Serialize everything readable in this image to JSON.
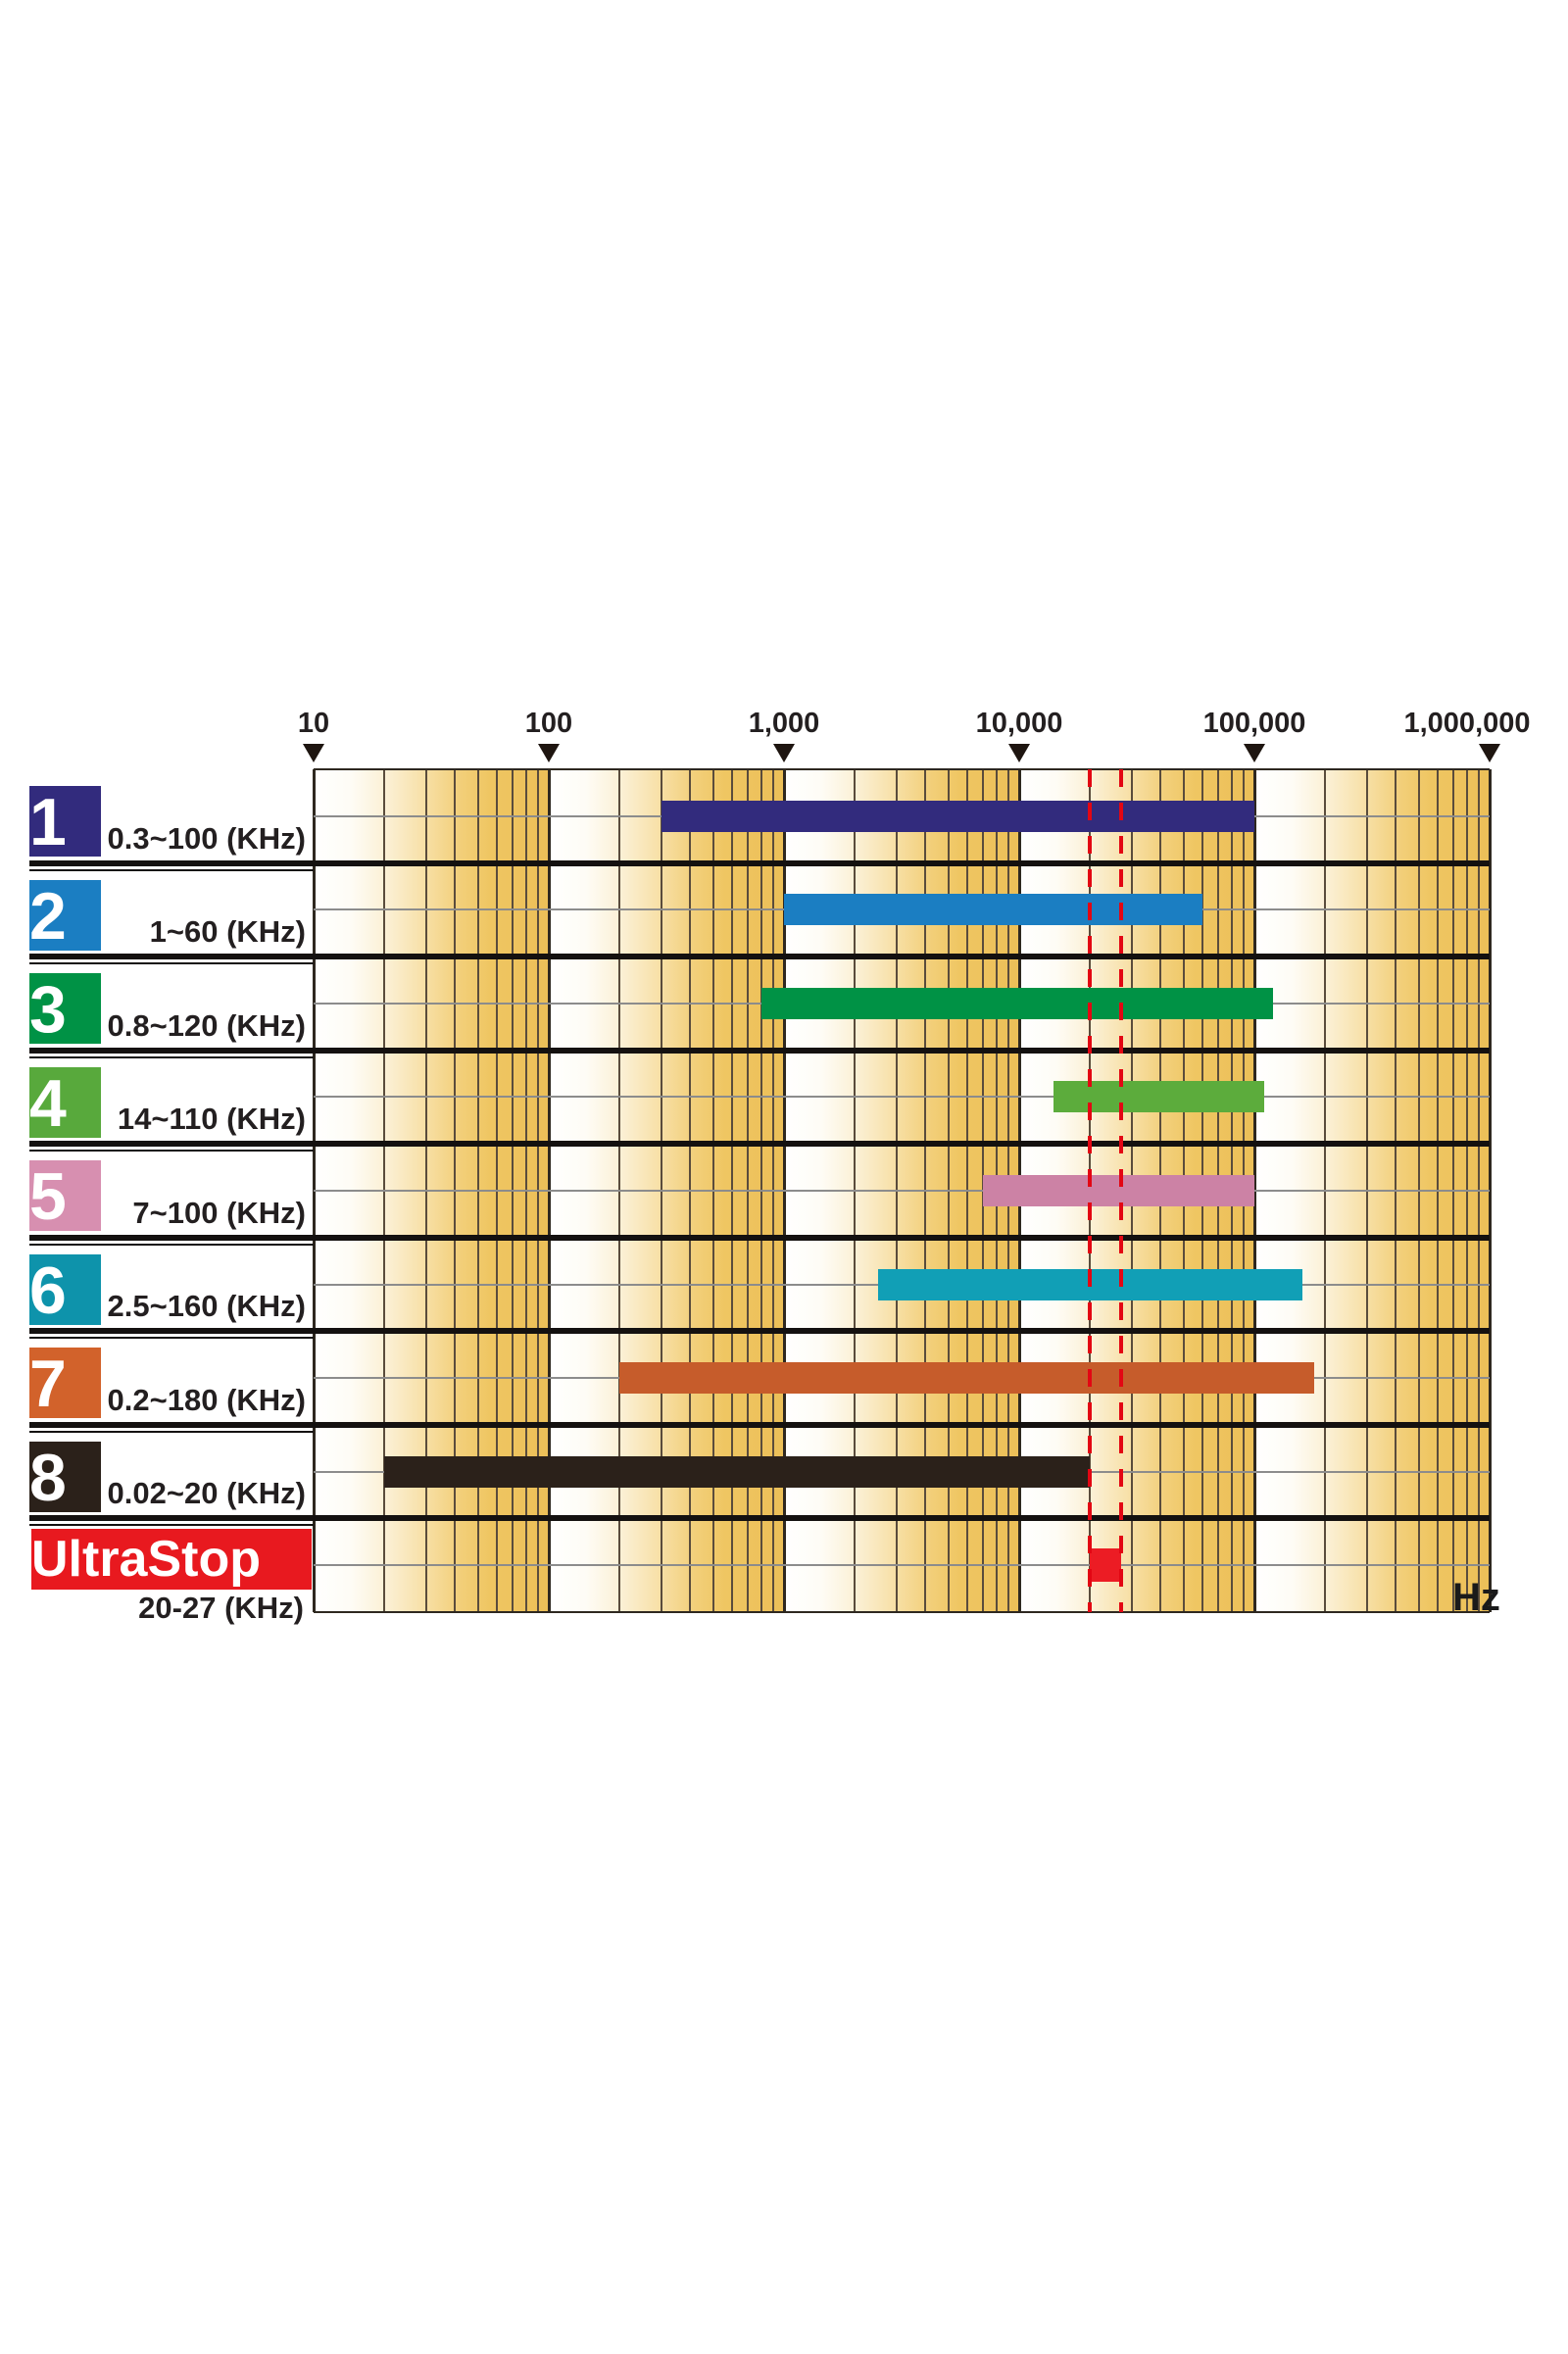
{
  "chart_data": {
    "type": "bar",
    "variant": "horizontal-log-range",
    "x_axis": {
      "unit": "Hz",
      "scale": "log",
      "min": 10,
      "max": 1000000,
      "ticks": [
        {
          "label": "10",
          "value": 10
        },
        {
          "label": "100",
          "value": 100
        },
        {
          "label": "1,000",
          "value": 1000
        },
        {
          "label": "10,000",
          "value": 10000
        },
        {
          "label": "100,000",
          "value": 100000
        },
        {
          "label": "1,000,000",
          "value": 1000000
        }
      ],
      "minor_gridlines": "multiples 2-9 of each decade"
    },
    "rows": [
      {
        "number": "1",
        "range_label": "0.3~100 (KHz)",
        "range_khz": [
          0.3,
          100
        ],
        "range_hz": [
          300,
          100000
        ],
        "bar_color": "#322b7d",
        "swatch_color": "#322b7d"
      },
      {
        "number": "2",
        "range_label": "1~60 (KHz)",
        "range_khz": [
          1,
          60
        ],
        "range_hz": [
          1000,
          60000
        ],
        "bar_color": "#1b7ec2",
        "swatch_color": "#1b7ec2"
      },
      {
        "number": "3",
        "range_label": "0.8~120 (KHz)",
        "range_khz": [
          0.8,
          120
        ],
        "range_hz": [
          800,
          120000
        ],
        "bar_color": "#009245",
        "swatch_color": "#009245"
      },
      {
        "number": "4",
        "range_label": "14~110 (KHz)",
        "range_khz": [
          14,
          110
        ],
        "range_hz": [
          14000,
          110000
        ],
        "bar_color": "#5cac3c",
        "swatch_color": "#58a93c"
      },
      {
        "number": "5",
        "range_label": "7~100 (KHz)",
        "range_khz": [
          7,
          100
        ],
        "range_hz": [
          7000,
          100000
        ],
        "bar_color": "#cc82a5",
        "swatch_color": "#d78fb0"
      },
      {
        "number": "6",
        "range_label": "2.5~160 (KHz)",
        "range_khz": [
          2.5,
          160
        ],
        "range_hz": [
          2500,
          160000
        ],
        "bar_color": "#119fb6",
        "swatch_color": "#0e93ab"
      },
      {
        "number": "7",
        "range_label": "0.2~180 (KHz)",
        "range_khz": [
          0.2,
          180
        ],
        "range_hz": [
          200,
          180000
        ],
        "bar_color": "#c65c2b",
        "swatch_color": "#d2622b"
      },
      {
        "number": "8",
        "range_label": "0.02~20 (KHz)",
        "range_khz": [
          0.02,
          20
        ],
        "range_hz": [
          20,
          20000
        ],
        "bar_color": "#2b211a",
        "swatch_color": "#2b211a"
      }
    ],
    "ultrastop": {
      "name": "UltraStop",
      "range_label": "20-27 (KHz)",
      "range_khz": [
        20,
        27
      ],
      "range_hz": [
        20000,
        27000
      ],
      "bar_color": "#ec1c24",
      "box_color": "#e8191f",
      "text_color": "#ffffff"
    },
    "reference_lines": {
      "values_hz": [
        20000,
        27000
      ],
      "style": "dashed",
      "color": "#e30613"
    },
    "colors": {
      "grid_stripe_orange": "#ecbf58",
      "gridline_minor": "#5a4c3c",
      "gridline_major": "#2e2820",
      "separator": "#141110",
      "midline": "#8c8c8c",
      "text": "#231f20"
    }
  }
}
